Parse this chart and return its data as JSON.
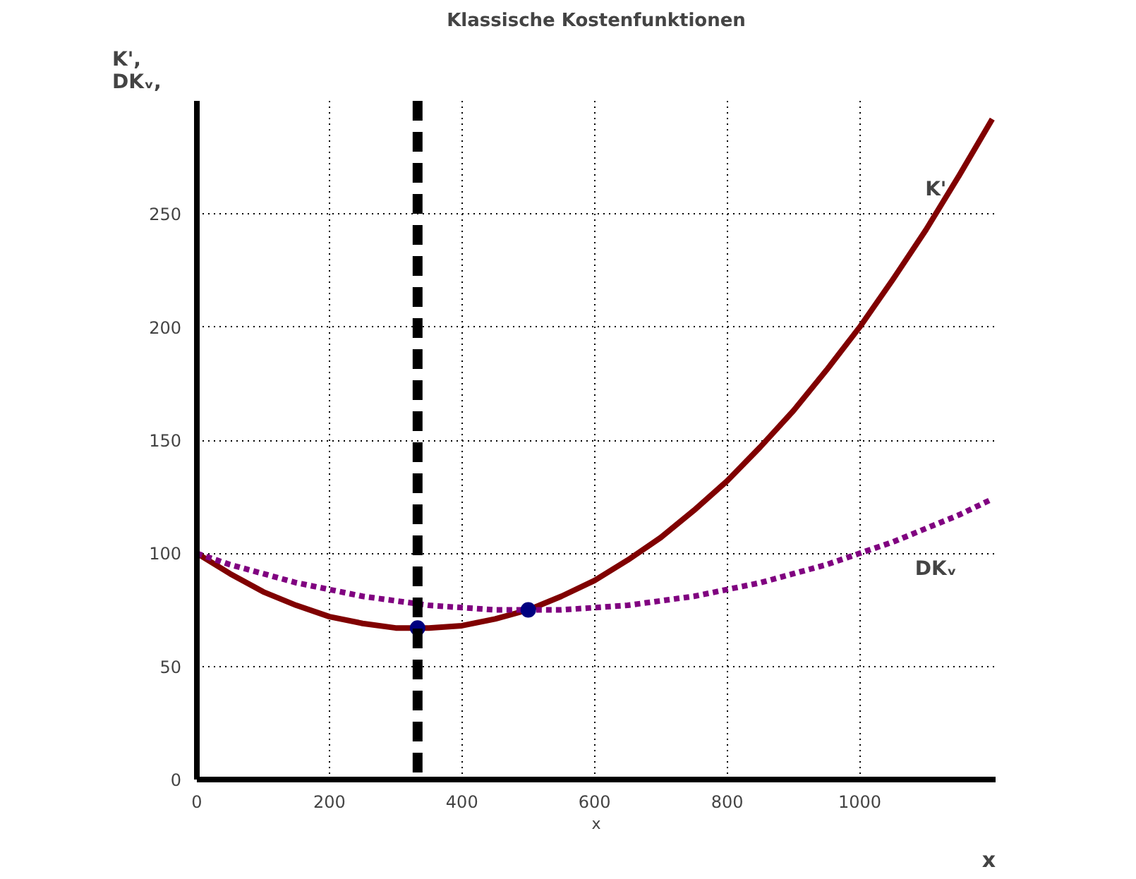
{
  "chart_data": {
    "type": "line",
    "title": "Klassische Kostenfunktionen",
    "xlabel": "x",
    "ylabel": "K',\nDKᵥ,",
    "xlim": [
      0,
      1205
    ],
    "ylim": [
      0,
      300
    ],
    "xticks": [
      0,
      200,
      400,
      600,
      800,
      1000
    ],
    "yticks": [
      0,
      50,
      100,
      150,
      200,
      250
    ],
    "grid": true,
    "series": [
      {
        "color": "#800000",
        "line_style": "solid",
        "x": [
          0,
          50,
          100,
          150,
          200,
          250,
          300,
          350,
          400,
          450,
          500,
          550,
          600,
          650,
          700,
          750,
          800,
          850,
          900,
          950,
          1000,
          1050,
          1100,
          1150,
          1200
        ],
        "values": [
          100,
          91,
          83,
          77,
          72,
          69,
          67,
          67,
          68,
          71,
          75,
          81,
          88,
          97,
          107,
          119,
          132,
          147,
          163,
          181,
          200,
          221,
          243,
          267,
          292
        ]
      },
      {
        "color": "#800080",
        "line_style": "dashed",
        "x": [
          0,
          50,
          100,
          150,
          200,
          250,
          300,
          350,
          400,
          450,
          500,
          550,
          600,
          650,
          700,
          750,
          800,
          850,
          900,
          950,
          1000,
          1050,
          1100,
          1150,
          1200
        ],
        "values": [
          100,
          95,
          91,
          87,
          84,
          81,
          79,
          77,
          76,
          75,
          75,
          75,
          76,
          77,
          79,
          81,
          84,
          87,
          91,
          95,
          100,
          105,
          111,
          117,
          124
        ]
      },
      {
        "type": "scatter",
        "color": "#000080",
        "marker": "circle",
        "x": [
          333,
          500
        ],
        "values": [
          67,
          75
        ]
      }
    ],
    "ref_lines": [
      {
        "axis": "x",
        "value": 333,
        "color": "#000000",
        "line_style": "dashed"
      }
    ],
    "annotations": [
      "K'",
      "DKᵥ",
      "x"
    ]
  }
}
